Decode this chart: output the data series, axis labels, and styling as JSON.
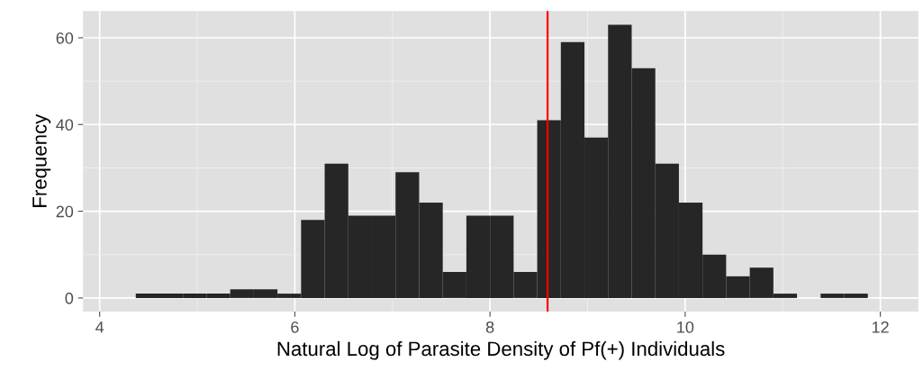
{
  "chart_data": {
    "type": "histogram",
    "xlabel": "Natural Log of Parasite Density of Pf(+) Individuals",
    "ylabel": "Frequency",
    "bins": [
      4.37,
      4.612,
      4.854,
      5.096,
      5.338,
      5.58,
      5.822,
      6.064,
      6.306,
      6.548,
      6.79,
      7.032,
      7.274,
      7.516,
      7.758,
      8.0,
      8.242,
      8.484,
      8.726,
      8.968,
      9.21,
      9.452,
      9.694,
      9.936,
      10.178,
      10.42,
      10.662,
      10.904,
      11.146,
      11.388,
      11.63,
      11.872
    ],
    "values": [
      1,
      1,
      1,
      1,
      2,
      2,
      1,
      18,
      31,
      19,
      19,
      29,
      22,
      6,
      19,
      19,
      6,
      41,
      59,
      37,
      63,
      53,
      31,
      22,
      10,
      5,
      7,
      1,
      0,
      1,
      1
    ],
    "color": "#262626",
    "xlim": [
      3.83,
      12.39
    ],
    "xticks": [
      4,
      6,
      8,
      10,
      12
    ],
    "ylim": [
      -3.15,
      66.15
    ],
    "yticks": [
      0,
      20,
      40,
      60
    ],
    "grid": true,
    "ref_lines": [
      {
        "axis": "x",
        "value": 8.59,
        "color": "#ff0000"
      }
    ]
  }
}
